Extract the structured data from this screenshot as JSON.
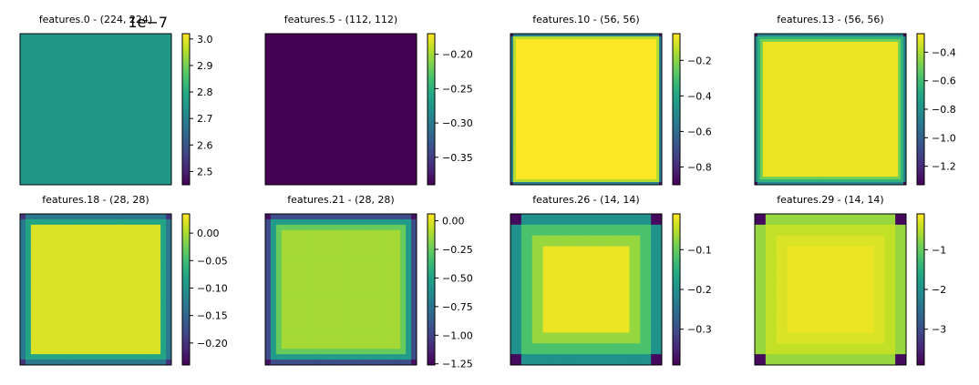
{
  "chart_data": [
    {
      "type": "heatmap",
      "title": "features.0 - (224, 224)",
      "size": 1,
      "grid": [
        [
          2.75
        ]
      ],
      "colorbar": {
        "vmin": 2.45,
        "vmax": 3.02,
        "ticks": [
          2.5,
          2.6,
          2.7,
          2.8,
          2.9,
          3.0
        ],
        "tick_labels": [
          "2.5",
          "2.6",
          "2.7",
          "2.8",
          "2.9",
          "3.0"
        ],
        "offset_text": "1e−7"
      }
    },
    {
      "type": "heatmap",
      "title": "features.5 - (112, 112)",
      "size": 1,
      "grid": [
        [
          -0.39
        ]
      ],
      "colorbar": {
        "vmin": -0.39,
        "vmax": -0.17,
        "ticks": [
          -0.2,
          -0.25,
          -0.3,
          -0.35
        ],
        "tick_labels": [
          "−0.20",
          "−0.25",
          "−0.30",
          "−0.35"
        ]
      }
    },
    {
      "type": "heatmap",
      "title": "features.10 - (56, 56)",
      "size": 56,
      "profile": {
        "corner": -0.85,
        "edge": [
          -0.55,
          -0.15
        ],
        "interior": -0.05
      },
      "colorbar": {
        "vmin": -0.9,
        "vmax": -0.05,
        "ticks": [
          -0.2,
          -0.4,
          -0.6,
          -0.8
        ],
        "tick_labels": [
          "−0.2",
          "−0.4",
          "−0.6",
          "−0.8"
        ]
      }
    },
    {
      "type": "heatmap",
      "title": "features.13 - (56, 56)",
      "size": 56,
      "profile": {
        "corner": -1.3,
        "edge": [
          -0.85,
          -0.65,
          -0.5
        ],
        "interior": -0.3
      },
      "colorbar": {
        "vmin": -1.33,
        "vmax": -0.27,
        "ticks": [
          -0.4,
          -0.6,
          -0.8,
          -1.0,
          -1.2
        ],
        "tick_labels": [
          "−0.4",
          "−0.6",
          "−0.8",
          "−1.0",
          "−1.2"
        ]
      }
    },
    {
      "type": "heatmap",
      "title": "features.18 - (28, 28)",
      "size": 28,
      "profile": {
        "corner": -0.2,
        "edge": [
          -0.13,
          -0.08
        ],
        "interior": 0.02
      },
      "colorbar": {
        "vmin": -0.24,
        "vmax": 0.035,
        "ticks": [
          0.0,
          -0.05,
          -0.1,
          -0.15,
          -0.2
        ],
        "tick_labels": [
          "0.00",
          "−0.05",
          "−0.10",
          "−0.15",
          "−0.20"
        ]
      }
    },
    {
      "type": "heatmap",
      "title": "features.21 - (28, 28)",
      "size": 28,
      "profile": {
        "corner": -1.2,
        "edge": [
          -0.95,
          -0.55,
          -0.25
        ],
        "interior": -0.12
      },
      "colorbar": {
        "vmin": -1.26,
        "vmax": 0.06,
        "ticks": [
          0.0,
          -0.25,
          -0.5,
          -0.75,
          -1.0,
          -1.25
        ],
        "tick_labels": [
          "0.00",
          "−0.25",
          "−0.50",
          "−0.75",
          "−1.00",
          "−1.25"
        ]
      }
    },
    {
      "type": "heatmap",
      "title": "features.26 - (14, 14)",
      "size": 14,
      "profile": {
        "corner": -0.38,
        "edge": [
          -0.2,
          -0.12,
          -0.07
        ],
        "interior": -0.02
      },
      "colorbar": {
        "vmin": -0.39,
        "vmax": -0.01,
        "ticks": [
          -0.1,
          -0.2,
          -0.3
        ],
        "tick_labels": [
          "−0.1",
          "−0.2",
          "−0.3"
        ]
      }
    },
    {
      "type": "heatmap",
      "title": "features.29 - (14, 14)",
      "size": 14,
      "profile": {
        "corner": -3.8,
        "edge": [
          -0.7,
          -0.45,
          -0.3
        ],
        "interior": -0.2
      },
      "colorbar": {
        "vmin": -3.9,
        "vmax": -0.1,
        "ticks": [
          -1,
          -2,
          -3
        ],
        "tick_labels": [
          "−1",
          "−2",
          "−3"
        ]
      }
    }
  ]
}
